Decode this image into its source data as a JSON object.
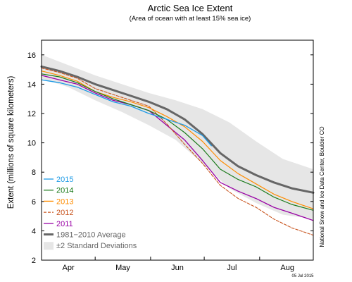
{
  "chart_data": {
    "type": "line",
    "title": "Arctic Sea Ice Extent",
    "subtitle": "(Area of ocean with at least 15% sea ice)",
    "ylabel": "Extent (millions of square kilometers)",
    "xlabel": "",
    "ylim": [
      2,
      17
    ],
    "yticks": [
      2,
      4,
      6,
      8,
      10,
      12,
      14,
      16
    ],
    "xlim": [
      0,
      152
    ],
    "x_unit": "days since Apr 1",
    "month_ticks": [
      {
        "label": "Apr",
        "x": 15
      },
      {
        "label": "May",
        "x": 45.5
      },
      {
        "label": "Jun",
        "x": 76
      },
      {
        "label": "Jul",
        "x": 106.5
      },
      {
        "label": "Aug",
        "x": 137.5
      }
    ],
    "month_boundaries": [
      0,
      30,
      61,
      91,
      122,
      153
    ],
    "grid": false,
    "legend_position": "lower-left",
    "credit": "National Snow and Ice Data Center, Boulder CO",
    "date_stamp": "05 Jul 2015",
    "std_band": {
      "label": "±2 Standard Deviations",
      "color": "#e6e6e6",
      "x": [
        0,
        15,
        30,
        45,
        60,
        75,
        90,
        105,
        120,
        135,
        152
      ],
      "upper": [
        16.0,
        15.3,
        14.6,
        14.0,
        13.4,
        12.9,
        12.3,
        11.4,
        10.1,
        8.9,
        8.2
      ],
      "lower": [
        14.4,
        13.8,
        12.9,
        12.1,
        11.2,
        10.2,
        8.6,
        6.9,
        5.9,
        5.1,
        4.8
      ]
    },
    "series": [
      {
        "name": "1981−2010 Average",
        "color": "#666666",
        "width": 3,
        "dash": "",
        "x": [
          0,
          10,
          20,
          30,
          40,
          50,
          60,
          70,
          80,
          90,
          100,
          110,
          120,
          130,
          140,
          152
        ],
        "y": [
          15.2,
          14.9,
          14.5,
          14.0,
          13.6,
          13.2,
          12.8,
          12.3,
          11.6,
          10.6,
          9.3,
          8.4,
          7.8,
          7.3,
          6.9,
          6.6
        ]
      },
      {
        "name": "2011",
        "color": "#9900a5",
        "width": 1.3,
        "dash": "",
        "x": [
          0,
          10,
          20,
          30,
          40,
          50,
          60,
          70,
          80,
          90,
          100,
          110,
          120,
          130,
          140,
          152
        ],
        "y": [
          14.6,
          14.3,
          14.0,
          13.4,
          12.9,
          12.6,
          12.2,
          11.2,
          10.2,
          8.8,
          7.3,
          6.7,
          6.2,
          5.6,
          5.2,
          4.7
        ]
      },
      {
        "name": "2012",
        "color": "#c8541e",
        "width": 1.1,
        "dash": "4,2",
        "x": [
          0,
          10,
          20,
          30,
          40,
          50,
          60,
          70,
          80,
          90,
          100,
          110,
          120,
          130,
          140,
          152
        ],
        "y": [
          15.1,
          14.8,
          14.4,
          13.7,
          13.3,
          12.9,
          12.5,
          11.3,
          9.9,
          8.6,
          7.1,
          6.2,
          5.6,
          4.8,
          4.2,
          3.7
        ]
      },
      {
        "name": "2013",
        "color": "#ff8c00",
        "width": 1.2,
        "dash": "",
        "x": [
          0,
          10,
          20,
          30,
          40,
          50,
          60,
          70,
          80,
          90,
          100,
          110,
          120,
          130,
          140,
          152
        ],
        "y": [
          14.9,
          14.6,
          14.2,
          13.5,
          13.1,
          12.8,
          12.4,
          11.8,
          11.1,
          10.1,
          8.8,
          7.9,
          7.2,
          6.5,
          6.0,
          5.5
        ]
      },
      {
        "name": "2014",
        "color": "#1a7a1a",
        "width": 1.2,
        "dash": "",
        "x": [
          0,
          10,
          20,
          30,
          40,
          50,
          60,
          70,
          80,
          90,
          100,
          110,
          120,
          130,
          140,
          152
        ],
        "y": [
          14.7,
          14.5,
          14.1,
          13.5,
          13.0,
          12.6,
          12.2,
          11.6,
          10.7,
          9.6,
          8.2,
          7.5,
          7.0,
          6.3,
          5.8,
          5.4
        ]
      },
      {
        "name": "2015",
        "color": "#1e9be6",
        "width": 1.3,
        "dash": "",
        "x": [
          0,
          10,
          20,
          30,
          40,
          50,
          60,
          70,
          80,
          90,
          95
        ],
        "y": [
          14.3,
          14.1,
          13.8,
          13.3,
          12.8,
          12.5,
          12.0,
          11.6,
          11.2,
          10.5,
          9.8
        ]
      }
    ],
    "legend_items": [
      {
        "label": "2015",
        "color": "#1e9be6",
        "kind": "line",
        "width": 1.3,
        "dash": ""
      },
      {
        "label": "2014",
        "color": "#1a7a1a",
        "kind": "line",
        "width": 1.3,
        "dash": ""
      },
      {
        "label": "2013",
        "color": "#ff8c00",
        "kind": "line",
        "width": 1.3,
        "dash": ""
      },
      {
        "label": "2012",
        "color": "#c8541e",
        "kind": "line",
        "width": 1.3,
        "dash": "4,2"
      },
      {
        "label": "2011",
        "color": "#9900a5",
        "kind": "line",
        "width": 1.3,
        "dash": ""
      },
      {
        "label": "1981−2010 Average",
        "color": "#666666",
        "kind": "line",
        "width": 3,
        "dash": ""
      },
      {
        "label": "±2 Standard Deviations",
        "color": "#e6e6e6",
        "kind": "box",
        "width": 0,
        "dash": ""
      }
    ]
  }
}
